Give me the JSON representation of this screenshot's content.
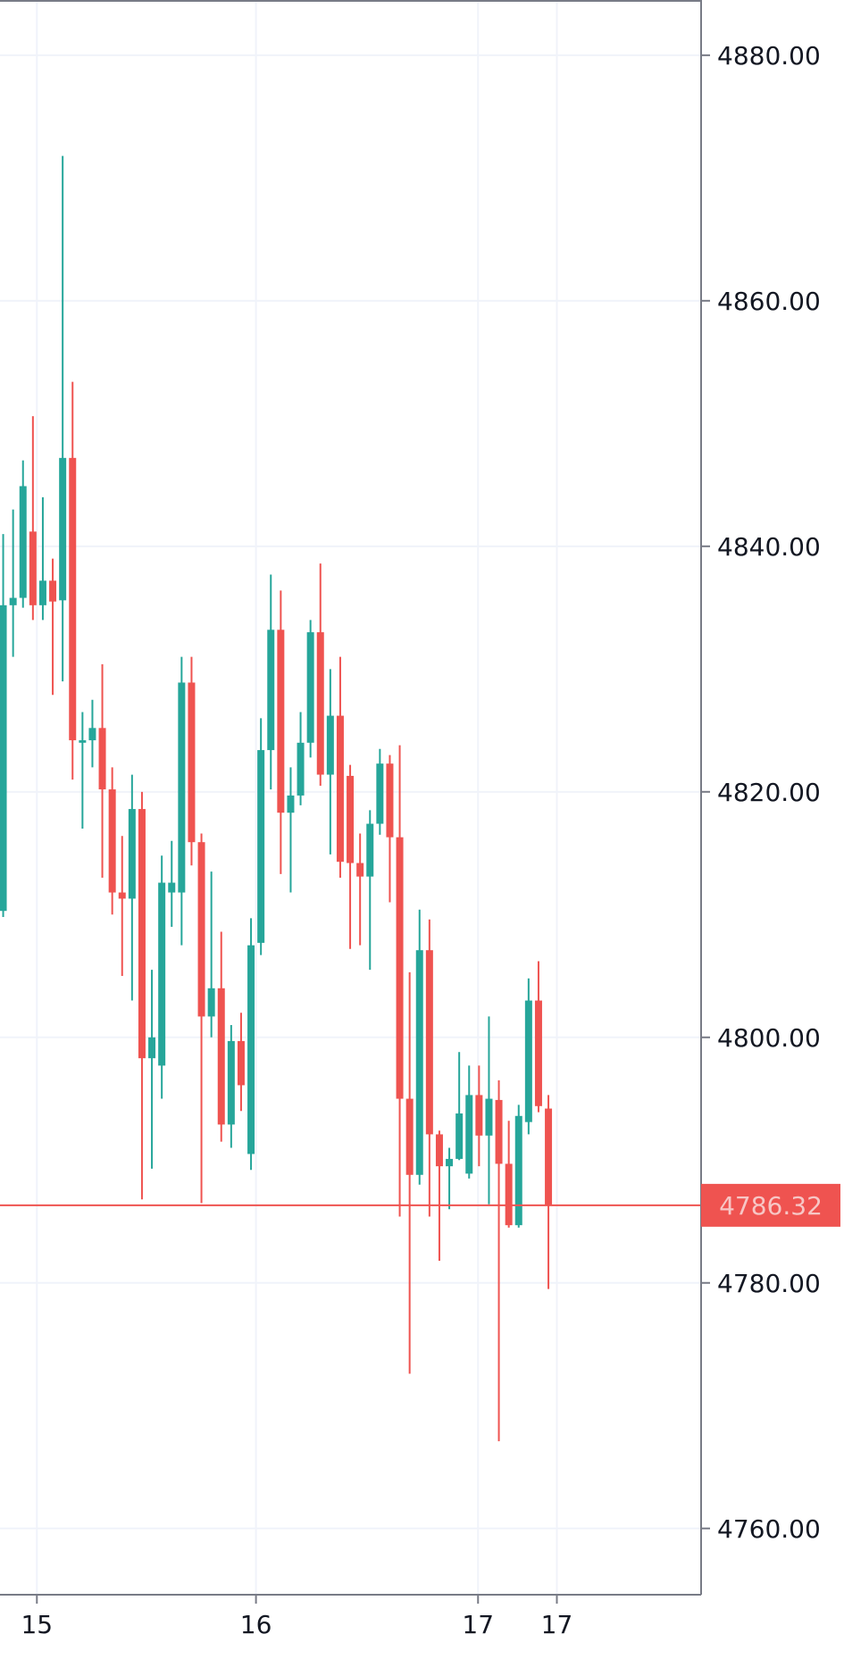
{
  "chart_data": {
    "type": "candlestick",
    "x": [
      0,
      1,
      2,
      3,
      4,
      5,
      6,
      7,
      8,
      9,
      10,
      11,
      12,
      13,
      14,
      15,
      16,
      17,
      18,
      19,
      20,
      21,
      22,
      23,
      24,
      25,
      26,
      27,
      28,
      29,
      30,
      31,
      32,
      33,
      34,
      35,
      36,
      37,
      38,
      39,
      40,
      41,
      42,
      43,
      44,
      45,
      46,
      47,
      48,
      49,
      50,
      51,
      52,
      53,
      54,
      55
    ],
    "open": [
      4810.3,
      4835.2,
      4835.8,
      4841.2,
      4835.2,
      4837.2,
      4835.6,
      4847.2,
      4824.0,
      4824.2,
      4825.2,
      4820.2,
      4811.8,
      4811.3,
      4818.6,
      4798.3,
      4797.7,
      4811.8,
      4811.8,
      4828.9,
      4815.9,
      4801.7,
      4804.0,
      4792.9,
      4799.7,
      4790.5,
      4807.7,
      4823.4,
      4833.2,
      4818.3,
      4819.7,
      4824.0,
      4833.0,
      4821.4,
      4826.2,
      4821.3,
      4814.2,
      4813.1,
      4817.4,
      4822.3,
      4816.3,
      4795.0,
      4788.8,
      4807.1,
      4792.1,
      4789.5,
      4790.1,
      4788.9,
      4795.3,
      4792.0,
      4794.9,
      4789.7,
      4784.7,
      4793.1,
      4803.0,
      4794.2
    ],
    "high": [
      4841.0,
      4843.0,
      4847.0,
      4850.6,
      4844.0,
      4839.0,
      4871.8,
      4853.4,
      4826.5,
      4827.5,
      4830.4,
      4822.0,
      4816.4,
      4821.4,
      4820.0,
      4805.5,
      4814.8,
      4816.0,
      4831.0,
      4831.0,
      4816.6,
      4813.5,
      4808.6,
      4801.0,
      4802.0,
      4809.7,
      4826.0,
      4837.7,
      4836.4,
      4822.0,
      4826.5,
      4834.0,
      4838.6,
      4830.0,
      4831.0,
      4822.2,
      4816.6,
      4818.5,
      4823.5,
      4823.0,
      4823.8,
      4805.3,
      4810.4,
      4809.6,
      4792.4,
      4791.0,
      4798.8,
      4797.7,
      4797.7,
      4801.7,
      4796.5,
      4793.2,
      4794.5,
      4804.8,
      4806.2,
      4795.3
    ],
    "low": [
      4809.8,
      4831.0,
      4835.0,
      4834.0,
      4834.0,
      4827.9,
      4829.0,
      4821.0,
      4817.0,
      4822.0,
      4813.0,
      4810.0,
      4805.0,
      4803.0,
      4786.8,
      4789.3,
      4795.0,
      4809.0,
      4807.5,
      4814.0,
      4786.5,
      4800.0,
      4791.5,
      4791.0,
      4794.0,
      4789.2,
      4806.7,
      4820.2,
      4813.3,
      4811.8,
      4818.9,
      4822.8,
      4820.5,
      4814.9,
      4813.0,
      4807.2,
      4807.5,
      4805.5,
      4816.5,
      4811.0,
      4785.4,
      4772.6,
      4788.0,
      4785.4,
      4781.8,
      4786.0,
      4790.0,
      4788.5,
      4789.5,
      4786.4,
      4767.1,
      4784.5,
      4784.5,
      4792.1,
      4793.9,
      4779.5
    ],
    "close": [
      4835.2,
      4835.8,
      4844.9,
      4835.2,
      4837.2,
      4835.5,
      4847.2,
      4824.2,
      4824.2,
      4825.2,
      4820.2,
      4811.8,
      4811.3,
      4818.6,
      4798.3,
      4800.0,
      4812.6,
      4812.6,
      4828.9,
      4815.9,
      4801.7,
      4804.0,
      4792.9,
      4799.7,
      4796.1,
      4807.5,
      4823.4,
      4833.2,
      4818.3,
      4819.7,
      4824.0,
      4833.0,
      4821.4,
      4826.2,
      4814.3,
      4814.2,
      4813.1,
      4817.4,
      4822.3,
      4816.3,
      4795.0,
      4788.8,
      4807.1,
      4792.1,
      4789.5,
      4790.1,
      4793.8,
      4795.3,
      4792.0,
      4795.0,
      4789.7,
      4784.7,
      4793.6,
      4803.0,
      4794.4,
      4786.32
    ],
    "up_color": "#26a69a",
    "down_color": "#ef5350",
    "last_price": 4786.32,
    "xlim": [
      -0.32,
      70.4
    ],
    "ylim": [
      4754.6,
      4884.5
    ],
    "xticks": [
      {
        "value": 3.4,
        "label": "15"
      },
      {
        "value": 25.5,
        "label": "16"
      },
      {
        "value": 47.9,
        "label": "17"
      },
      {
        "value": 55.85,
        "label": "17"
      }
    ],
    "yticks": [
      {
        "value": 4760,
        "label": "4760.00"
      },
      {
        "value": 4780,
        "label": "4780.00"
      },
      {
        "value": 4800,
        "label": "4800.00"
      },
      {
        "value": 4820,
        "label": "4820.00"
      },
      {
        "value": 4840,
        "label": "4840.00"
      },
      {
        "value": 4860,
        "label": "4860.00"
      },
      {
        "value": 4880,
        "label": "4880.00"
      }
    ],
    "grid": true
  }
}
